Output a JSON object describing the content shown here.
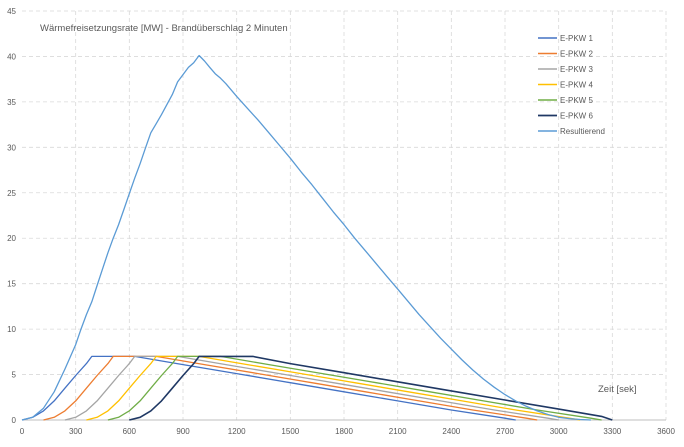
{
  "chart_data": {
    "type": "line",
    "title": "Wärmefreisetzungsrate [MW] - Brandüberschlag 2 Minuten",
    "xlabel": "Zeit [sek]",
    "ylabel": "",
    "xlim": [
      0,
      3600
    ],
    "ylim": [
      0,
      45
    ],
    "x_ticks": [
      0,
      300,
      600,
      900,
      1200,
      1500,
      1800,
      2100,
      2400,
      2700,
      3000,
      3300,
      3600
    ],
    "y_ticks": [
      0,
      5,
      10,
      15,
      20,
      25,
      30,
      35,
      40,
      45
    ],
    "grid": true,
    "legend_position": "top-right",
    "series": [
      {
        "name": "E-PKW 1",
        "color": "#4472C4",
        "points": [
          [
            0,
            0
          ],
          [
            60,
            0.3
          ],
          [
            120,
            1.0
          ],
          [
            180,
            2.1
          ],
          [
            240,
            3.5
          ],
          [
            300,
            4.9
          ],
          [
            360,
            6.2
          ],
          [
            390,
            7.0
          ],
          [
            630,
            7.0
          ],
          [
            900,
            6.1
          ],
          [
            1200,
            5.1
          ],
          [
            1500,
            4.1
          ],
          [
            1800,
            3.1
          ],
          [
            2100,
            2.1
          ],
          [
            2400,
            1.1
          ],
          [
            2700,
            0.2
          ],
          [
            2760,
            0
          ]
        ]
      },
      {
        "name": "E-PKW 2",
        "color": "#ED7D31",
        "points": [
          [
            120,
            0
          ],
          [
            180,
            0.3
          ],
          [
            240,
            1.0
          ],
          [
            300,
            2.1
          ],
          [
            360,
            3.5
          ],
          [
            420,
            4.9
          ],
          [
            480,
            6.2
          ],
          [
            510,
            7.0
          ],
          [
            750,
            7.0
          ],
          [
            1020,
            6.1
          ],
          [
            1320,
            5.1
          ],
          [
            1620,
            4.1
          ],
          [
            1920,
            3.1
          ],
          [
            2220,
            2.1
          ],
          [
            2520,
            1.1
          ],
          [
            2820,
            0.2
          ],
          [
            2880,
            0
          ]
        ]
      },
      {
        "name": "E-PKW 3",
        "color": "#A5A5A5",
        "points": [
          [
            240,
            0
          ],
          [
            300,
            0.3
          ],
          [
            360,
            1.0
          ],
          [
            420,
            2.1
          ],
          [
            480,
            3.5
          ],
          [
            540,
            4.9
          ],
          [
            600,
            6.2
          ],
          [
            630,
            7.0
          ],
          [
            870,
            7.0
          ],
          [
            1140,
            6.1
          ],
          [
            1440,
            5.1
          ],
          [
            1740,
            4.1
          ],
          [
            2040,
            3.1
          ],
          [
            2340,
            2.1
          ],
          [
            2640,
            1.1
          ],
          [
            2940,
            0.2
          ],
          [
            3000,
            0
          ]
        ]
      },
      {
        "name": "E-PKW 4",
        "color": "#FFC000",
        "points": [
          [
            360,
            0
          ],
          [
            420,
            0.3
          ],
          [
            480,
            1.0
          ],
          [
            540,
            2.1
          ],
          [
            600,
            3.5
          ],
          [
            660,
            4.9
          ],
          [
            720,
            6.2
          ],
          [
            750,
            7.0
          ],
          [
            990,
            7.0
          ],
          [
            1260,
            6.1
          ],
          [
            1560,
            5.1
          ],
          [
            1860,
            4.1
          ],
          [
            2160,
            3.1
          ],
          [
            2460,
            2.1
          ],
          [
            2760,
            1.1
          ],
          [
            3060,
            0.2
          ],
          [
            3120,
            0
          ]
        ]
      },
      {
        "name": "E-PKW 5",
        "color": "#70AD47",
        "points": [
          [
            480,
            0
          ],
          [
            540,
            0.3
          ],
          [
            600,
            1.0
          ],
          [
            660,
            2.1
          ],
          [
            720,
            3.5
          ],
          [
            780,
            4.9
          ],
          [
            840,
            6.2
          ],
          [
            870,
            7.0
          ],
          [
            1110,
            7.0
          ],
          [
            1380,
            6.1
          ],
          [
            1680,
            5.1
          ],
          [
            1980,
            4.1
          ],
          [
            2280,
            3.1
          ],
          [
            2580,
            2.1
          ],
          [
            2880,
            1.1
          ],
          [
            3180,
            0.2
          ],
          [
            3240,
            0
          ]
        ]
      },
      {
        "name": "E-PKW 6",
        "color": "#1F3864",
        "points": [
          [
            600,
            0
          ],
          [
            660,
            0.3
          ],
          [
            720,
            1.0
          ],
          [
            780,
            2.1
          ],
          [
            840,
            3.5
          ],
          [
            900,
            4.9
          ],
          [
            960,
            6.2
          ],
          [
            990,
            7.0
          ],
          [
            1290,
            7.0
          ],
          [
            1500,
            6.2
          ],
          [
            1800,
            5.2
          ],
          [
            2100,
            4.2
          ],
          [
            2400,
            3.2
          ],
          [
            2700,
            2.2
          ],
          [
            3000,
            1.2
          ],
          [
            3240,
            0.4
          ],
          [
            3300,
            0
          ]
        ]
      },
      {
        "name": "Resultierend",
        "color": "#5B9BD5",
        "points": [
          [
            0,
            0
          ],
          [
            60,
            0.3
          ],
          [
            120,
            1.3
          ],
          [
            180,
            3.1
          ],
          [
            240,
            5.6
          ],
          [
            300,
            8.3
          ],
          [
            330,
            10.0
          ],
          [
            360,
            11.6
          ],
          [
            390,
            13.0
          ],
          [
            420,
            14.8
          ],
          [
            450,
            16.6
          ],
          [
            480,
            18.4
          ],
          [
            510,
            20.0
          ],
          [
            540,
            21.5
          ],
          [
            570,
            23.2
          ],
          [
            600,
            24.9
          ],
          [
            630,
            26.6
          ],
          [
            660,
            28.2
          ],
          [
            690,
            29.9
          ],
          [
            720,
            31.6
          ],
          [
            750,
            32.6
          ],
          [
            780,
            33.6
          ],
          [
            810,
            34.7
          ],
          [
            840,
            35.8
          ],
          [
            870,
            37.2
          ],
          [
            900,
            38.0
          ],
          [
            930,
            38.8
          ],
          [
            960,
            39.3
          ],
          [
            990,
            40.1
          ],
          [
            1020,
            39.5
          ],
          [
            1050,
            38.8
          ],
          [
            1080,
            38.1
          ],
          [
            1110,
            37.6
          ],
          [
            1140,
            37.0
          ],
          [
            1170,
            36.3
          ],
          [
            1200,
            35.6
          ],
          [
            1260,
            34.3
          ],
          [
            1320,
            33.0
          ],
          [
            1380,
            31.6
          ],
          [
            1440,
            30.2
          ],
          [
            1500,
            28.8
          ],
          [
            1560,
            27.3
          ],
          [
            1620,
            25.9
          ],
          [
            1680,
            24.4
          ],
          [
            1740,
            22.9
          ],
          [
            1800,
            21.5
          ],
          [
            1860,
            20.0
          ],
          [
            1920,
            18.6
          ],
          [
            1980,
            17.2
          ],
          [
            2040,
            15.8
          ],
          [
            2100,
            14.4
          ],
          [
            2160,
            13.0
          ],
          [
            2220,
            11.6
          ],
          [
            2280,
            10.3
          ],
          [
            2340,
            9.0
          ],
          [
            2400,
            7.8
          ],
          [
            2460,
            6.6
          ],
          [
            2520,
            5.5
          ],
          [
            2580,
            4.5
          ],
          [
            2640,
            3.6
          ],
          [
            2700,
            2.8
          ],
          [
            2760,
            2.1
          ],
          [
            2820,
            1.5
          ],
          [
            2880,
            1.0
          ],
          [
            2940,
            0.6
          ],
          [
            3000,
            0.3
          ],
          [
            3060,
            0.15
          ],
          [
            3120,
            0.05
          ],
          [
            3180,
            0
          ]
        ]
      }
    ]
  }
}
